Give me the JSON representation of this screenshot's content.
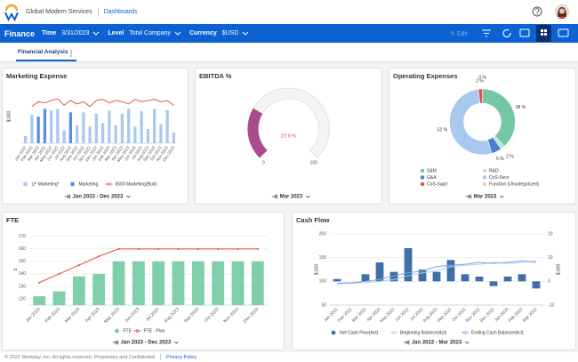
{
  "header": {
    "company": "Global Modern Services",
    "section": "Dashboards"
  },
  "toolbar": {
    "title": "Finance",
    "filters": [
      {
        "label": "Time",
        "value": "3/31/2023"
      },
      {
        "label": "Level",
        "value": "Total Company"
      },
      {
        "label": "Currency",
        "value": "$USD"
      }
    ],
    "edit": "Edit"
  },
  "tabs": [
    "Financial Analysis"
  ],
  "chart_data": [
    {
      "type": "combo",
      "title": "Marketing Expense",
      "period": "Jan 2023 - Dec 2023",
      "ylabel": "$,000",
      "ylim": [
        0,
        90
      ],
      "grid": true,
      "categories": [
        "Jan 2022",
        "Feb 2022",
        "Mar 2022",
        "Apr 2022",
        "May 2022",
        "Jun 2022",
        "Jul 2022",
        "Aug 2022",
        "Sep 2022",
        "Oct 2022",
        "Nov 2022",
        "Dec 2022",
        "Jan 2023",
        "Feb 2023",
        "Mar 2023",
        "Apr 2023",
        "May 2023",
        "Jun 2023",
        "Jul 2023",
        "Aug 2023",
        "Sep 2023",
        "Oct 2023",
        "Nov 2023",
        "Dec 2023"
      ],
      "series": [
        {
          "name": "LF Marketing*",
          "type": "bar",
          "color": "#a9c8ef",
          "values": [
            12,
            48,
            null,
            null,
            55,
            58,
            22,
            null,
            30,
            52,
            28,
            50,
            34,
            55,
            30,
            50,
            58,
            28,
            54,
            24,
            58,
            32,
            56,
            18
          ]
        },
        {
          "name": "Marketing",
          "type": "bar",
          "color": "#5b8ee0",
          "values": [
            null,
            null,
            45,
            58,
            null,
            null,
            null,
            52,
            null,
            null,
            null,
            null,
            null,
            null,
            null,
            null,
            null,
            null,
            null,
            null,
            null,
            null,
            null,
            null
          ]
        },
        {
          "name": "6500 Marketing(Bud)",
          "type": "line",
          "color": "#e05a4f",
          "values": [
            null,
            62,
            70,
            68,
            72,
            75,
            64,
            72,
            66,
            70,
            62,
            72,
            74,
            68,
            72,
            70,
            66,
            74,
            70,
            72,
            74,
            70,
            72,
            64
          ]
        }
      ]
    },
    {
      "type": "gauge",
      "title": "EBITDA %",
      "period": "Mar 2023",
      "value": 27.9,
      "value_label": "27.9 %",
      "ylim": [
        0,
        100
      ],
      "yticks": [
        0,
        100
      ],
      "color": "#a94b8c"
    },
    {
      "type": "donut",
      "title": "Operating Expenses",
      "period": "Mar 2023",
      "categories": [
        "S&M",
        "R&D",
        "G&A",
        "CoS-Svcs",
        "CoS-Suprt",
        "Function (Uncategorized)"
      ],
      "values": [
        38,
        2,
        5,
        52,
        2,
        0
      ],
      "value_labels": [
        "38 %",
        "2 %",
        "5 %",
        "52 %",
        "2 %",
        "0 %"
      ],
      "colors": [
        "#74c7a2",
        "#b9e3c6",
        "#4c7fd3",
        "#a9c8f0",
        "#d9534f",
        "#e9c8b0"
      ]
    },
    {
      "type": "combo",
      "title": "FTE",
      "period": "Jan 2023 - Dec 2023",
      "ylabel": "#",
      "ylim": [
        115,
        172
      ],
      "yticks": [
        120,
        130,
        140,
        150,
        160,
        170
      ],
      "grid": true,
      "categories": [
        "Jan 2023",
        "Feb 2023",
        "Mar 2023",
        "Apr 2023",
        "May 2023",
        "Jun 2023",
        "Jul 2023",
        "Aug 2023",
        "Sep 2023",
        "Oct 2023",
        "Nov 2023",
        "Dec 2023"
      ],
      "series": [
        {
          "name": "FTE",
          "type": "bar",
          "color": "#7fcfab",
          "values": [
            122,
            126,
            138,
            140,
            150,
            150,
            150,
            150,
            150,
            150,
            150,
            150
          ]
        },
        {
          "name": "FTE - Plan",
          "type": "line",
          "color": "#e0483e",
          "markers": true,
          "values": [
            133,
            140,
            147,
            154,
            160,
            160,
            160,
            160,
            160,
            160,
            160,
            160
          ]
        }
      ]
    },
    {
      "type": "combo",
      "title": "Cash Flow",
      "period": "Jan 2022 - Mar 2023",
      "ylabel": "$,000",
      "y2label": "$,000",
      "ylim": [
        50,
        200
      ],
      "yticks": [
        50,
        100,
        150,
        200
      ],
      "y2lim": [
        -10,
        20
      ],
      "y2ticks": [
        -10,
        0,
        10,
        20
      ],
      "grid": true,
      "categories": [
        "Jan 2022",
        "Feb 2022",
        "Mar 2022",
        "Apr 2022",
        "May 2022",
        "Jun 2022",
        "Jul 2022",
        "Aug 2022",
        "Sep 2022",
        "Oct 2022",
        "Nov 2022",
        "Dec 2022",
        "Jan 2023",
        "Feb 2023",
        "Mar 2023"
      ],
      "series": [
        {
          "name": "Net Cash Flow(Act)",
          "type": "bar",
          "axis": "y2",
          "color": "#3f6fa8",
          "values": [
            1,
            0,
            3,
            8,
            4,
            14,
            5,
            4,
            9,
            3,
            2,
            -2,
            2,
            3,
            -3
          ]
        },
        {
          "name": "Beginning Balance(Act)",
          "type": "line",
          "color": "#b5cdf0",
          "values": [
            95,
            96,
            97,
            100,
            104,
            112,
            118,
            122,
            131,
            134,
            136,
            140,
            138,
            140,
            143
          ]
        },
        {
          "name": "Ending Cash Balance(Act)",
          "type": "line",
          "color": "#7aa6e6",
          "values": [
            96,
            97,
            100,
            104,
            112,
            118,
            122,
            131,
            134,
            136,
            140,
            138,
            140,
            143,
            140
          ]
        }
      ]
    }
  ],
  "footer": {
    "copyright": "© 2022 Workday, Inc. All rights reserved. Proprietary and Confidential",
    "link": "Privacy Policy"
  }
}
